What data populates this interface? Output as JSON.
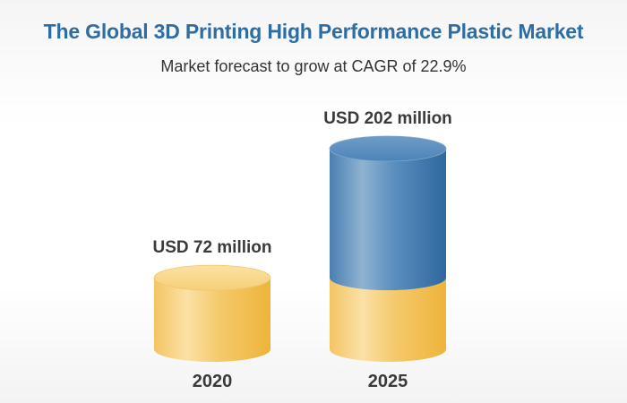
{
  "header": {
    "title": "The Global 3D Printing High Performance Plastic Market",
    "subtitle": "Market forecast to grow at CAGR of 22.9%"
  },
  "colors": {
    "title": "#2e6da4",
    "base_segment": "#f4c561",
    "growth_segment": "#4f88ba",
    "text": "#3a3a3a"
  },
  "chart_data": {
    "type": "bar",
    "style": "3d-cylinder",
    "title": "The Global 3D Printing High Performance Plastic Market",
    "subtitle": "Market forecast to grow at CAGR of 22.9%",
    "categories": [
      "2020",
      "2025"
    ],
    "values": [
      72,
      202
    ],
    "unit": "USD million",
    "value_labels": [
      "USD 72 million",
      "USD 202 million"
    ],
    "ylim": [
      0,
      202
    ],
    "grid": false,
    "legend": "none"
  }
}
